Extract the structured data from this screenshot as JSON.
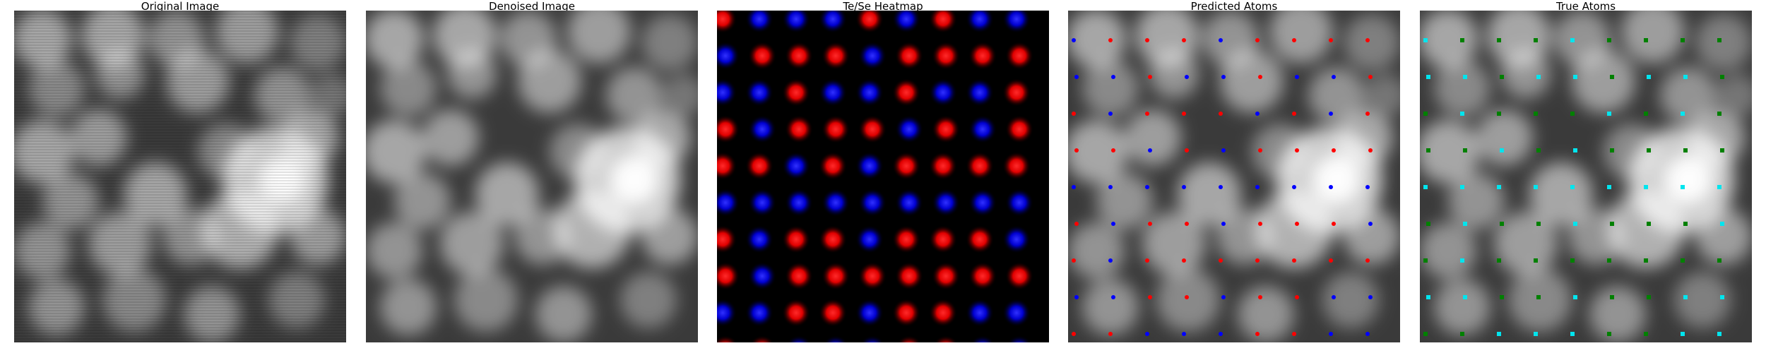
{
  "panels": [
    {
      "id": "original",
      "title": "Original Image"
    },
    {
      "id": "denoised",
      "title": "Denoised Image"
    },
    {
      "id": "heatmap",
      "title": "Te/Se Heatmap"
    },
    {
      "id": "predicted",
      "title": "Predicted Atoms"
    },
    {
      "id": "true",
      "title": "True Atoms"
    }
  ],
  "colors": {
    "heatmap_te": "#ff1a1a",
    "heatmap_se": "#2020ff",
    "predicted_red": "#ff0000",
    "predicted_blue": "#0000ff",
    "true_green": "#008000",
    "true_cyan": "#00e5ee"
  },
  "heatmap_pattern": [
    "rbbbrbrbb",
    "brrrbrrrr",
    "bbrbbrbbr",
    "rbrrrbrbr",
    "rrbrbrrrr",
    "bbbbbbbbb",
    "rbrrbrrrb",
    "rbrrrrrrr",
    "bbrrbrrbb",
    "rrbbbrrbb"
  ]
}
